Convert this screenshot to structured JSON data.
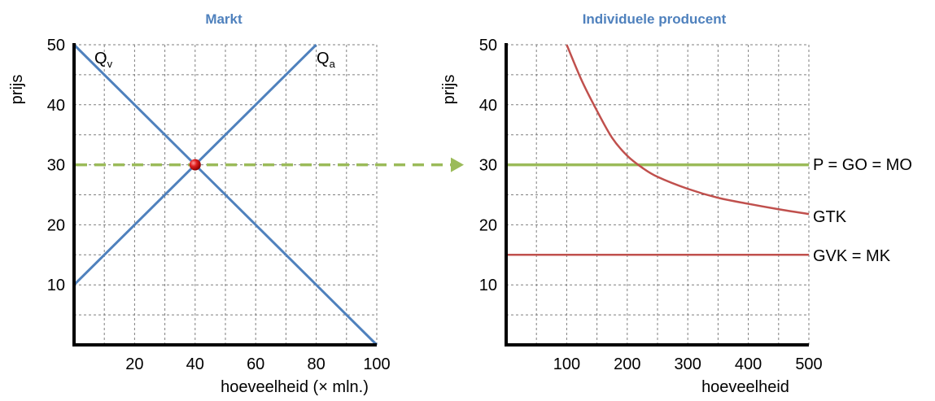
{
  "colors": {
    "blue": "#4f81bd",
    "red": "#c0504d",
    "green": "#9bbb59",
    "axis": "#000000"
  },
  "chart_data": [
    {
      "type": "line",
      "title": "Markt",
      "xlabel": "hoeveelheid (× mln.)",
      "ylabel": "prijs",
      "xlim": [
        0,
        100
      ],
      "ylim": [
        0,
        50
      ],
      "xticks": [
        20,
        40,
        60,
        80,
        100
      ],
      "yticks": [
        10,
        20,
        30,
        40,
        50
      ],
      "grid": true,
      "series": [
        {
          "name": "Q",
          "subscript": "v",
          "color": "#4f81bd",
          "x": [
            0,
            100
          ],
          "y": [
            50,
            0
          ]
        },
        {
          "name": "Q",
          "subscript": "a",
          "color": "#4f81bd",
          "x": [
            0,
            80
          ],
          "y": [
            10,
            50
          ]
        }
      ],
      "equilibrium": {
        "x": 40,
        "y": 30,
        "color": "#c00000"
      },
      "price_line": {
        "y": 30,
        "color": "#9bbb59",
        "arrow": "to-right-panel"
      }
    },
    {
      "type": "line",
      "title": "Individuele producent",
      "xlabel": "hoeveelheid",
      "ylabel": "prijs",
      "xlim": [
        0,
        500
      ],
      "ylim": [
        0,
        50
      ],
      "xticks": [
        100,
        200,
        300,
        400,
        500
      ],
      "yticks": [
        10,
        20,
        30,
        40,
        50
      ],
      "grid": true,
      "series": [
        {
          "name": "P = GO = MO",
          "color": "#9bbb59",
          "x": [
            0,
            500
          ],
          "y": [
            30,
            30
          ]
        },
        {
          "name": "GTK",
          "color": "#c0504d",
          "x": [
            100,
            125,
            150,
            175,
            200,
            225,
            250,
            300,
            350,
            400,
            450,
            500
          ],
          "y": [
            50,
            44,
            39,
            34.5,
            31.5,
            29.5,
            28,
            26,
            24.5,
            23.5,
            22.6,
            21.8
          ]
        },
        {
          "name": "GVK = MK",
          "color": "#c0504d",
          "x": [
            0,
            500
          ],
          "y": [
            15,
            15
          ]
        }
      ]
    }
  ]
}
